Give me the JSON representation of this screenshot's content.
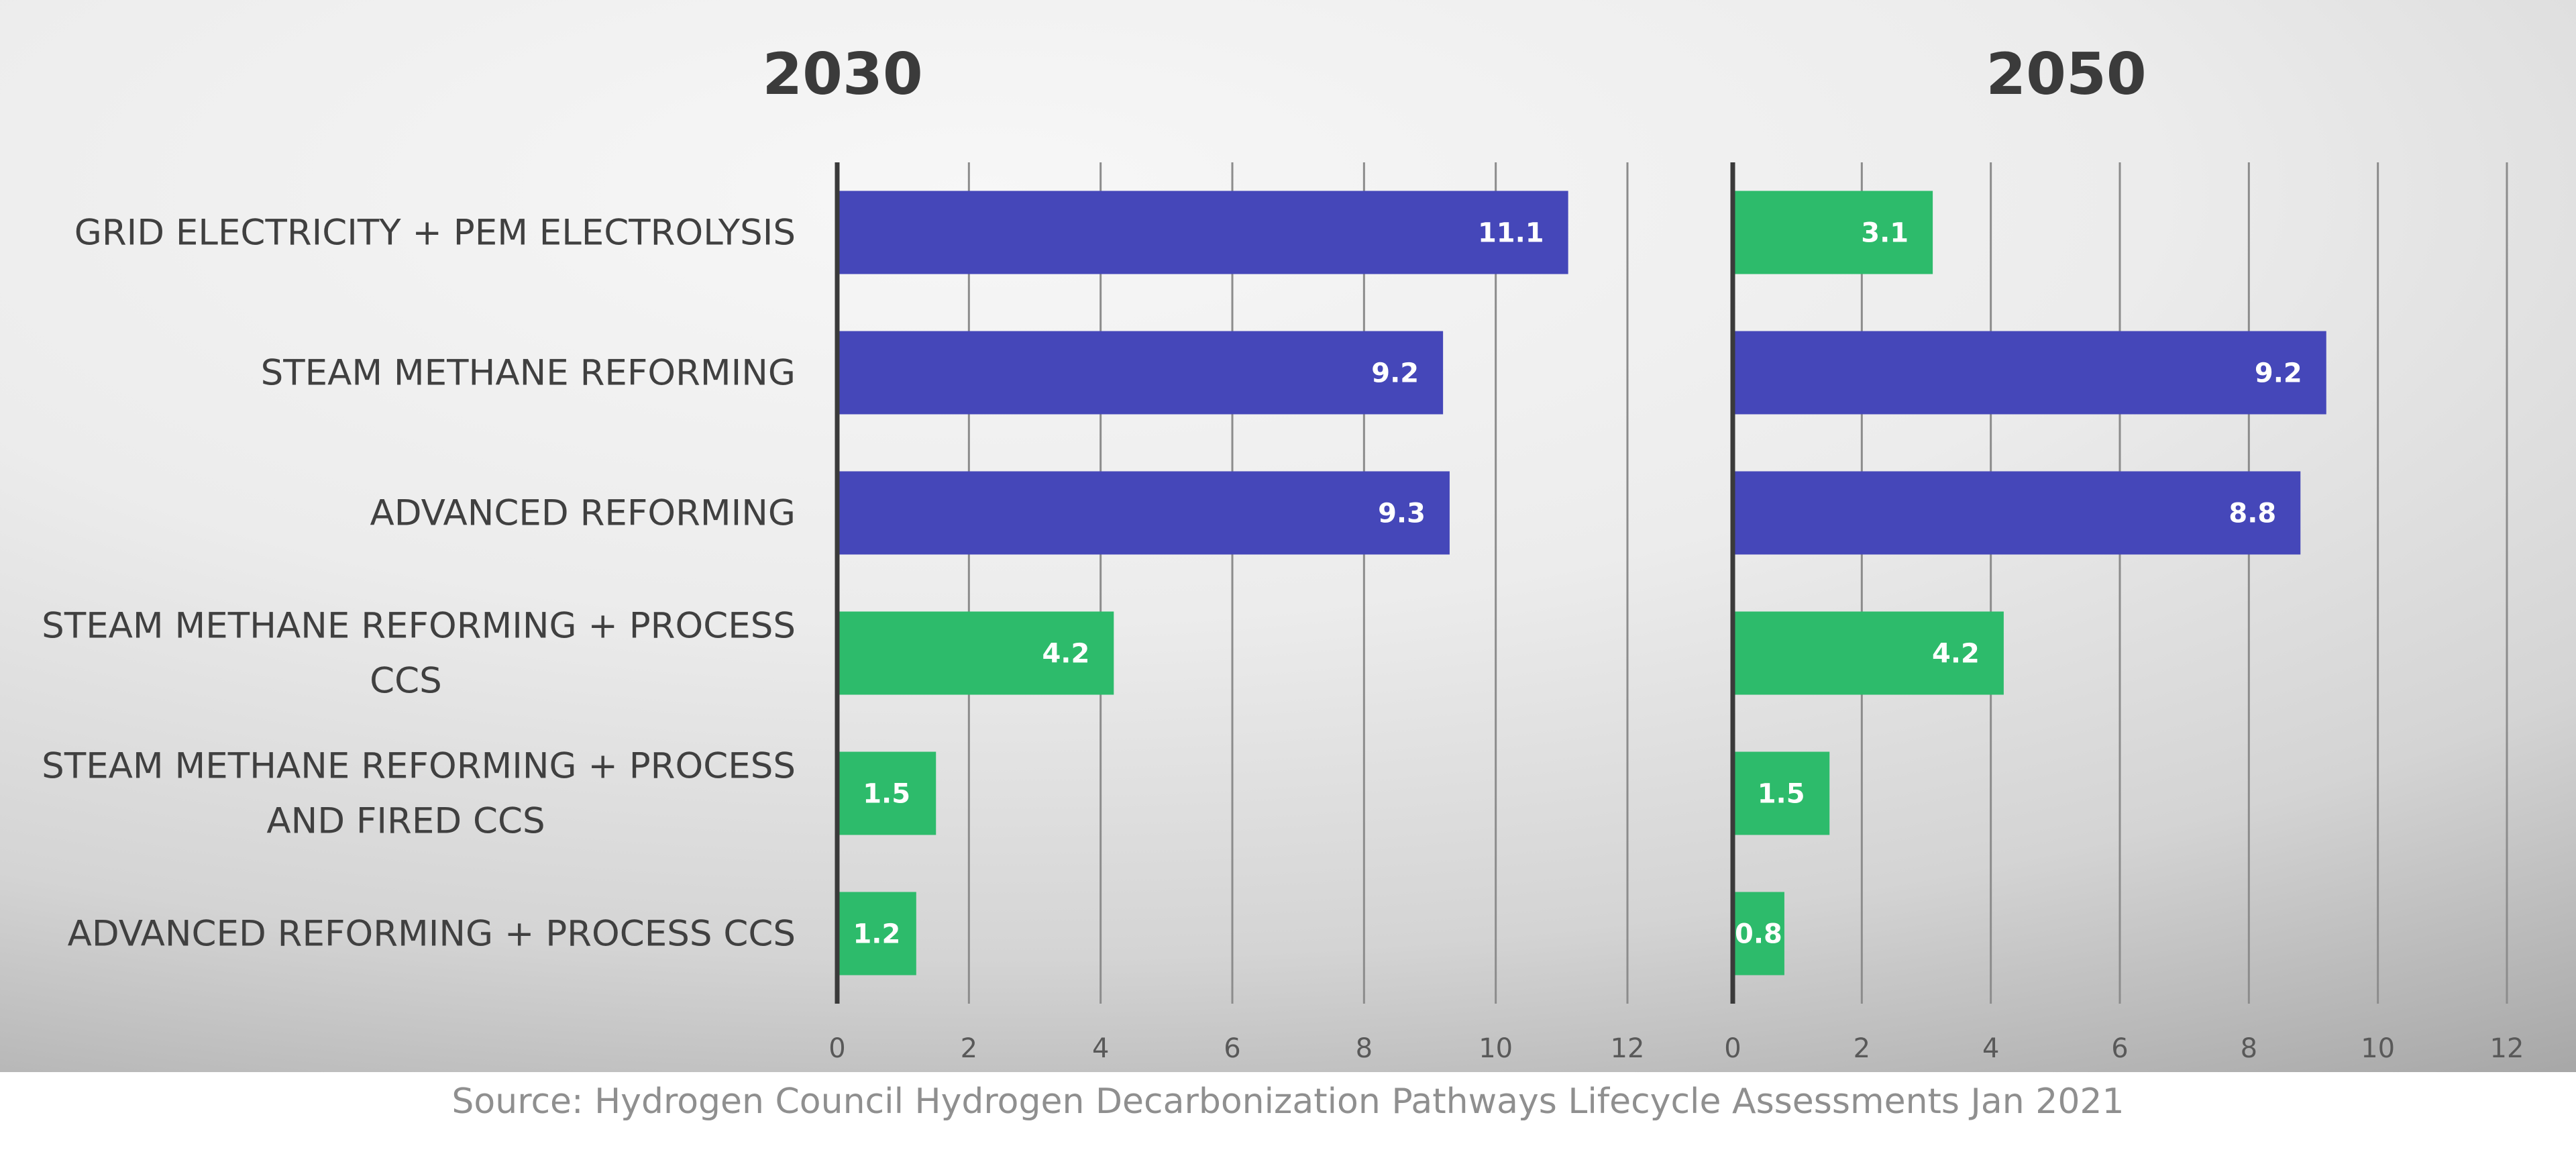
{
  "chart_data": {
    "type": "bar",
    "orientation": "horizontal",
    "categories": [
      "GRID ELECTRICITY + PEM ELECTROLYSIS",
      "STEAM METHANE REFORMING",
      "ADVANCED REFORMING",
      "STEAM METHANE REFORMING + PROCESS CCS",
      "STEAM METHANE REFORMING + PROCESS AND FIRED CCS",
      "ADVANCED REFORMING + PROCESS CCS"
    ],
    "category_lines": [
      [
        "GRID ELECTRICITY + PEM ELECTROLYSIS"
      ],
      [
        "STEAM METHANE REFORMING"
      ],
      [
        "ADVANCED REFORMING"
      ],
      [
        "STEAM METHANE REFORMING + PROCESS",
        "CCS"
      ],
      [
        "STEAM METHANE REFORMING + PROCESS",
        "AND FIRED CCS"
      ],
      [
        "ADVANCED REFORMING + PROCESS CCS"
      ]
    ],
    "panels": [
      {
        "title": "2030",
        "values": [
          11.1,
          9.2,
          9.3,
          4.2,
          1.5,
          1.2
        ],
        "value_labels": [
          "11.1",
          "9.2",
          "9.3",
          "4.2",
          "1.5",
          "1.2"
        ],
        "bar_colors": [
          "#4547b9",
          "#4547b9",
          "#4547b9",
          "#2dbb6b",
          "#2dbb6b",
          "#2dbb6b"
        ],
        "xlim": [
          0,
          12
        ],
        "ticks": [
          0,
          2,
          4,
          6,
          8,
          10,
          12
        ],
        "tick_labels": [
          "0",
          "2",
          "4",
          "6",
          "8",
          "10",
          "12"
        ]
      },
      {
        "title": "2050",
        "values": [
          3.1,
          9.2,
          8.8,
          4.2,
          1.5,
          0.8
        ],
        "value_labels": [
          "3.1",
          "9.2",
          "8.8",
          "4.2",
          "1.5",
          "0.8"
        ],
        "bar_colors": [
          "#2dbb6b",
          "#4547b9",
          "#4547b9",
          "#2dbb6b",
          "#2dbb6b",
          "#2dbb6b"
        ],
        "xlim": [
          0,
          12
        ],
        "ticks": [
          0,
          2,
          4,
          6,
          8,
          10,
          12
        ],
        "tick_labels": [
          "0",
          "2",
          "4",
          "6",
          "8",
          "10",
          "12"
        ]
      }
    ],
    "colors": {
      "blue": "#4547b9",
      "green": "#2dbb6b"
    },
    "grid": true,
    "legend": "none"
  },
  "source": "Source: Hydrogen Council Hydrogen Decarbonization Pathways Lifecycle Assessments Jan 2021"
}
